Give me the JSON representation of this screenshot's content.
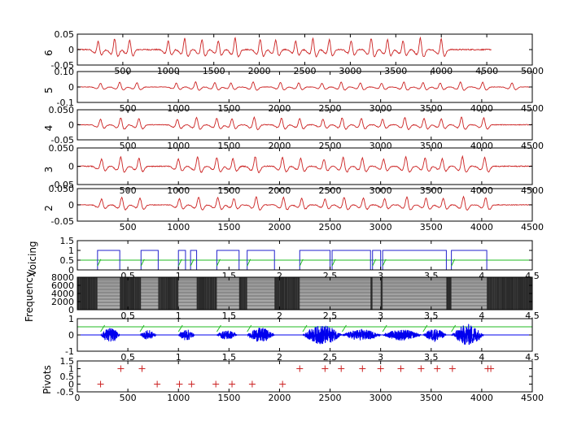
{
  "chart_data": [
    {
      "type": "line",
      "ylabel": "6",
      "xlim": [
        0,
        5000
      ],
      "ylim": [
        -0.05,
        0.05
      ],
      "xticks": [
        0,
        500,
        1000,
        1500,
        2000,
        2500,
        3000,
        3500,
        4000,
        4500,
        5000
      ],
      "yticks": [
        -0.05,
        0,
        0.05
      ],
      "xticklabels": [
        "500",
        "1000",
        "1500",
        "2000",
        "2500",
        "3000",
        "3500",
        "4000",
        "4500",
        "5000"
      ],
      "yticklabels": [
        "-0.05",
        "0",
        "0.05"
      ],
      "x_end": 4550,
      "line_color": "#cc2222",
      "peaks": [
        230,
        410,
        575,
        1000,
        1180,
        1370,
        1550,
        1735,
        2010,
        2180,
        2400,
        2590,
        2770,
        3010,
        3230,
        3410,
        3580,
        3770,
        4000
      ],
      "peak_amplitude": 0.045
    },
    {
      "type": "line",
      "ylabel": "5",
      "xlim": [
        0,
        4500
      ],
      "ylim": [
        -0.1,
        0.1
      ],
      "xticks": [
        0,
        500,
        1000,
        1500,
        2000,
        2500,
        3000,
        3500,
        4000,
        4500
      ],
      "yticks": [
        -0.1,
        0,
        0.1
      ],
      "xticklabels": [
        "500",
        "1000",
        "1500",
        "2000",
        "2500",
        "3000",
        "3500",
        "4000",
        "4500"
      ],
      "yticklabels": [
        "-0.1",
        "0",
        "0.10"
      ],
      "x_end": 4500,
      "line_color": "#cc2222",
      "peaks": [
        230,
        420,
        590,
        980,
        1170,
        1360,
        1520,
        1740,
        2010,
        2190,
        2420,
        2610,
        2800,
        3010,
        3230,
        3420,
        3590,
        3790,
        4010,
        4300
      ],
      "peak_amplitude": 0.04
    },
    {
      "type": "line",
      "ylabel": "4",
      "xlim": [
        0,
        4500
      ],
      "ylim": [
        -0.05,
        0.05
      ],
      "xticks": [
        0,
        500,
        1000,
        1500,
        2000,
        2500,
        3000,
        3500,
        4000,
        4500
      ],
      "yticks": [
        -0.05,
        0,
        0.05
      ],
      "xticklabels": [
        "500",
        "1000",
        "1500",
        "2000",
        "2500",
        "3000",
        "3500",
        "4000",
        "4500"
      ],
      "yticklabels": [
        "-0.05",
        "0",
        "0.050"
      ],
      "x_end": 4500,
      "line_color": "#cc2222",
      "peaks": [
        230,
        430,
        610,
        990,
        1180,
        1380,
        1530,
        1750,
        2020,
        2200,
        2430,
        2620,
        2810,
        3020,
        3240,
        3430,
        3600,
        3800,
        4020
      ],
      "peak_amplitude": 0.03
    },
    {
      "type": "line",
      "ylabel": "3",
      "xlim": [
        0,
        4500
      ],
      "ylim": [
        -0.05,
        0.05
      ],
      "xticks": [
        0,
        500,
        1000,
        1500,
        2000,
        2500,
        3000,
        3500,
        4000,
        4500
      ],
      "yticks": [
        -0.05,
        0,
        0.05
      ],
      "xticklabels": [
        "500",
        "1000",
        "1500",
        "2000",
        "2500",
        "3000",
        "3500",
        "4000",
        "4500"
      ],
      "yticklabels": [
        "-0.05",
        "0",
        "0.050"
      ],
      "x_end": 4500,
      "line_color": "#cc2222",
      "peaks": [
        240,
        430,
        610,
        1000,
        1190,
        1380,
        1540,
        1760,
        2030,
        2210,
        2440,
        2630,
        2820,
        3030,
        3250,
        3440,
        3610,
        3810,
        4030
      ],
      "peak_amplitude": 0.032
    },
    {
      "type": "line",
      "ylabel": "2",
      "xlim": [
        0,
        4500
      ],
      "ylim": [
        -0.05,
        0.05
      ],
      "xticks": [
        0,
        500,
        1000,
        1500,
        2000,
        2500,
        3000,
        3500,
        4000,
        4500
      ],
      "yticks": [
        -0.05,
        0,
        0.05
      ],
      "xticklabels": [
        "500",
        "1000",
        "1500",
        "2000",
        "2500",
        "3000",
        "3500",
        "4000",
        "4500"
      ],
      "yticklabels": [
        "-0.05",
        "0",
        "0.050"
      ],
      "x_end": 4500,
      "line_color": "#cc2222",
      "peaks": [
        240,
        440,
        620,
        1010,
        1200,
        1390,
        1550,
        1770,
        2040,
        2220,
        2450,
        2640,
        2830,
        3040,
        3260,
        3450,
        3620,
        3820,
        4040
      ],
      "peak_amplitude": 0.03
    },
    {
      "type": "step",
      "ylabel": "Voicing",
      "xlim": [
        0,
        4.5
      ],
      "ylim": [
        0,
        1.5
      ],
      "xticks": [
        0,
        0.5,
        1,
        1.5,
        2,
        2.5,
        3,
        3.5,
        4,
        4.5
      ],
      "yticks": [
        0,
        0.5,
        1,
        1.5
      ],
      "xticklabels": [
        "0.5",
        "1",
        "1.5",
        "2",
        "2.5",
        "3",
        "3.5",
        "4",
        "4.5"
      ],
      "yticklabels": [
        "0",
        "0.5",
        "1",
        "1.5"
      ],
      "line_color": "#2222cc",
      "threshold": 0.5,
      "threshold_color": "#22bb22",
      "voiced_segments": [
        [
          0.2,
          0.42
        ],
        [
          0.63,
          0.8
        ],
        [
          1.0,
          1.07
        ],
        [
          1.12,
          1.18
        ],
        [
          1.38,
          1.6
        ],
        [
          1.68,
          1.95
        ],
        [
          2.2,
          2.5
        ],
        [
          2.52,
          2.9
        ],
        [
          2.92,
          3.0
        ],
        [
          3.02,
          3.65
        ],
        [
          3.7,
          4.05
        ]
      ]
    },
    {
      "type": "heatmap",
      "ylabel": "Frequency",
      "xlim": [
        0,
        4.5
      ],
      "ylim": [
        0,
        8000
      ],
      "xticks": [
        0,
        0.5,
        1,
        1.5,
        2,
        2.5,
        3,
        3.5,
        4,
        4.5
      ],
      "yticks": [
        0,
        2000,
        4000,
        6000,
        8000
      ],
      "xticklabels": [
        "0.5",
        "1",
        "1.5",
        "2",
        "2.5",
        "3",
        "3.5",
        "4",
        "4.5"
      ],
      "yticklabels": [
        "0",
        "2000",
        "4000",
        "6000",
        "8000"
      ],
      "colormap": "gray",
      "voiced_segments": [
        [
          0.2,
          0.42
        ],
        [
          0.63,
          0.8
        ],
        [
          1.0,
          1.18
        ],
        [
          1.38,
          1.6
        ],
        [
          1.68,
          1.95
        ],
        [
          2.2,
          2.9
        ],
        [
          2.92,
          3.0
        ],
        [
          3.02,
          3.65
        ],
        [
          3.7,
          4.05
        ]
      ]
    },
    {
      "type": "line",
      "ylabel": "",
      "xlim": [
        0,
        4.5
      ],
      "ylim": [
        -1,
        1
      ],
      "xticks": [
        0,
        0.5,
        1,
        1.5,
        2,
        2.5,
        3,
        3.5,
        4,
        4.5
      ],
      "yticks": [
        -1,
        0,
        1
      ],
      "xticklabels": [
        "0.5",
        "1",
        "1.5",
        "2",
        "2.5",
        "3",
        "3.5",
        "4",
        "4.5"
      ],
      "yticklabels": [
        "-1",
        "0",
        "1"
      ],
      "line_color": "#0000ee",
      "threshold_color": "#22bb22",
      "bursts": [
        {
          "start": 0.23,
          "end": 0.42,
          "amp": 0.45
        },
        {
          "start": 0.62,
          "end": 0.78,
          "amp": 0.3
        },
        {
          "start": 1.0,
          "end": 1.16,
          "amp": 0.35
        },
        {
          "start": 1.38,
          "end": 1.58,
          "amp": 0.3
        },
        {
          "start": 1.68,
          "end": 1.95,
          "amp": 0.45
        },
        {
          "start": 2.23,
          "end": 2.62,
          "amp": 0.6
        },
        {
          "start": 2.62,
          "end": 3.0,
          "amp": 0.35
        },
        {
          "start": 3.02,
          "end": 3.4,
          "amp": 0.35
        },
        {
          "start": 3.42,
          "end": 3.65,
          "amp": 0.4
        },
        {
          "start": 3.7,
          "end": 4.02,
          "amp": 0.65
        }
      ]
    },
    {
      "type": "scatter",
      "ylabel": "Pivots",
      "xlim": [
        0,
        4500
      ],
      "ylim": [
        -0.5,
        1.5
      ],
      "xticks": [
        0,
        500,
        1000,
        1500,
        2000,
        2500,
        3000,
        3500,
        4000,
        4500
      ],
      "yticks": [
        -0.5,
        0,
        0.5,
        1,
        1.5
      ],
      "xticklabels": [
        "0",
        "500",
        "1000",
        "1500",
        "2000",
        "2500",
        "3000",
        "3500",
        "4000",
        "4500"
      ],
      "yticklabels": [
        "-0.5",
        "0",
        "0.5",
        "1",
        "1.5"
      ],
      "marker": "+",
      "marker_color": "#cc2222",
      "points": [
        {
          "x": 230,
          "y": 0
        },
        {
          "x": 430,
          "y": 1
        },
        {
          "x": 640,
          "y": 1
        },
        {
          "x": 790,
          "y": 0
        },
        {
          "x": 1010,
          "y": 0
        },
        {
          "x": 1130,
          "y": 0
        },
        {
          "x": 1370,
          "y": 0
        },
        {
          "x": 1530,
          "y": 0
        },
        {
          "x": 1730,
          "y": 0
        },
        {
          "x": 2030,
          "y": 0
        },
        {
          "x": 2200,
          "y": 1
        },
        {
          "x": 2450,
          "y": 1
        },
        {
          "x": 2610,
          "y": 1
        },
        {
          "x": 2820,
          "y": 1
        },
        {
          "x": 3000,
          "y": 1
        },
        {
          "x": 3200,
          "y": 1
        },
        {
          "x": 3400,
          "y": 1
        },
        {
          "x": 3560,
          "y": 1
        },
        {
          "x": 3710,
          "y": 1
        },
        {
          "x": 4060,
          "y": 1
        },
        {
          "x": 4090,
          "y": 1
        }
      ]
    }
  ]
}
